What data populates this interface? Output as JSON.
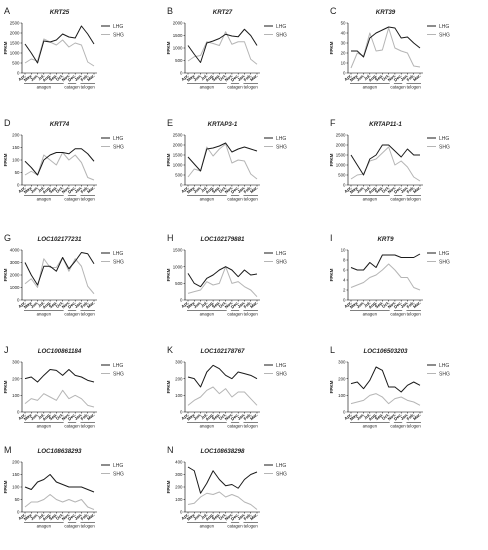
{
  "months": [
    "Apr.",
    "May.",
    "Jun.",
    "Jul.",
    "Aug.",
    "Sep.",
    "Oct.",
    "Nov.",
    "Dec.",
    "Jan.",
    "Feb.",
    "Mar."
  ],
  "phases": [
    "anagen",
    "catagen",
    "telogen"
  ],
  "colors": {
    "LHG": "#1a1a1a",
    "SHG": "#b5b5b5"
  },
  "chart_data": [
    {
      "letter": "A",
      "type": "line",
      "title": "KRT25",
      "ylabel": "FPKM",
      "ylim": [
        0,
        2500
      ],
      "yticks": [
        0,
        500,
        1000,
        1500,
        2000,
        2500
      ],
      "categories": [
        "Apr.",
        "May.",
        "Jun.",
        "Jul.",
        "Aug.",
        "Sep.",
        "Oct.",
        "Nov.",
        "Dec.",
        "Jan.",
        "Feb.",
        "Mar."
      ],
      "series": [
        {
          "name": "LHG",
          "values": [
            1450,
            1000,
            500,
            1600,
            1550,
            1650,
            1950,
            1800,
            1750,
            2350,
            1950,
            1450
          ]
        },
        {
          "name": "SHG",
          "values": [
            500,
            700,
            600,
            1700,
            1550,
            1400,
            1650,
            1300,
            1500,
            1400,
            550,
            350
          ]
        }
      ]
    },
    {
      "letter": "B",
      "type": "line",
      "title": "KRT27",
      "ylabel": "FPKM",
      "ylim": [
        0,
        2000
      ],
      "yticks": [
        0,
        500,
        1000,
        1500,
        2000
      ],
      "categories": [
        "Apr.",
        "May.",
        "Jun.",
        "Jul.",
        "Aug.",
        "Sep.",
        "Oct.",
        "Nov.",
        "Dec.",
        "Jan.",
        "Feb.",
        "Mar."
      ],
      "series": [
        {
          "name": "LHG",
          "values": [
            1100,
            750,
            420,
            1200,
            1280,
            1380,
            1550,
            1480,
            1450,
            1750,
            1500,
            1100
          ]
        },
        {
          "name": "SHG",
          "values": [
            480,
            650,
            700,
            1250,
            1180,
            1100,
            1650,
            1150,
            1250,
            1250,
            550,
            350
          ]
        }
      ]
    },
    {
      "letter": "C",
      "type": "line",
      "title": "KRT39",
      "ylabel": "FPKM",
      "ylim": [
        0,
        50
      ],
      "yticks": [
        0,
        10,
        20,
        30,
        40,
        50
      ],
      "categories": [
        "Apr.",
        "May.",
        "Jun.",
        "Jul.",
        "Aug.",
        "Sep.",
        "Oct.",
        "Nov.",
        "Dec.",
        "Jan.",
        "Feb.",
        "Mar."
      ],
      "series": [
        {
          "name": "LHG",
          "values": [
            22,
            22,
            16,
            35,
            40,
            43,
            46,
            45,
            35,
            36,
            30,
            25
          ]
        },
        {
          "name": "SHG",
          "values": [
            5,
            20,
            17,
            40,
            22,
            23,
            45,
            25,
            22,
            20,
            7,
            6
          ]
        }
      ]
    },
    {
      "letter": "D",
      "type": "line",
      "title": "KRT74",
      "ylabel": "FPKM",
      "ylim": [
        0,
        200
      ],
      "yticks": [
        0,
        50,
        100,
        150,
        200
      ],
      "categories": [
        "Apr.",
        "May.",
        "Jun.",
        "Jul.",
        "Aug.",
        "Sep.",
        "Oct.",
        "Nov.",
        "Dec.",
        "Jan.",
        "Feb.",
        "Mar."
      ],
      "series": [
        {
          "name": "LHG",
          "values": [
            95,
            70,
            40,
            100,
            120,
            130,
            130,
            125,
            145,
            145,
            125,
            95
          ]
        },
        {
          "name": "SHG",
          "values": [
            40,
            55,
            40,
            120,
            100,
            80,
            130,
            100,
            120,
            90,
            30,
            20
          ]
        }
      ]
    },
    {
      "letter": "E",
      "type": "line",
      "title": "KRTAP3-1",
      "ylabel": "FPKM",
      "ylim": [
        0,
        2500
      ],
      "yticks": [
        0,
        500,
        1000,
        1500,
        2000,
        2500
      ],
      "categories": [
        "Apr.",
        "May.",
        "Jun.",
        "Jul.",
        "Aug.",
        "Sep.",
        "Oct.",
        "Nov.",
        "Dec.",
        "Jan.",
        "Feb.",
        "Mar."
      ],
      "series": [
        {
          "name": "LHG",
          "values": [
            1400,
            1050,
            700,
            1800,
            1850,
            1950,
            2100,
            1650,
            1800,
            1900,
            1800,
            1700
          ]
        },
        {
          "name": "SHG",
          "values": [
            400,
            800,
            700,
            1900,
            1450,
            1800,
            2050,
            1100,
            1250,
            1200,
            550,
            300
          ]
        }
      ]
    },
    {
      "letter": "F",
      "type": "line",
      "title": "KRTAP11-1",
      "ylabel": "FPKM",
      "ylim": [
        0,
        2500
      ],
      "yticks": [
        0,
        500,
        1000,
        1500,
        2000,
        2500
      ],
      "categories": [
        "Apr.",
        "May.",
        "Jun.",
        "Jul.",
        "Aug.",
        "Sep.",
        "Oct.",
        "Nov.",
        "Dec.",
        "Jan.",
        "Feb.",
        "Mar."
      ],
      "series": [
        {
          "name": "LHG",
          "values": [
            1500,
            1000,
            500,
            1300,
            1500,
            2000,
            2000,
            1700,
            1400,
            1800,
            1500,
            1500
          ]
        },
        {
          "name": "SHG",
          "values": [
            300,
            500,
            550,
            1200,
            1300,
            1600,
            1900,
            1000,
            1200,
            900,
            400,
            200
          ]
        }
      ]
    },
    {
      "letter": "G",
      "type": "line",
      "title": "LOC102177231",
      "ylabel": "FPKM",
      "ylim": [
        0,
        4000
      ],
      "yticks": [
        0,
        1000,
        2000,
        3000,
        4000
      ],
      "categories": [
        "Apr.",
        "May.",
        "Jun.",
        "Jul.",
        "Aug.",
        "Sep.",
        "Oct.",
        "Nov.",
        "Dec.",
        "Jan.",
        "Feb.",
        "Mar."
      ],
      "series": [
        {
          "name": "LHG",
          "values": [
            3000,
            2000,
            1200,
            2700,
            2700,
            2300,
            3400,
            2500,
            3100,
            3800,
            3700,
            2900
          ]
        },
        {
          "name": "SHG",
          "values": [
            1300,
            1700,
            1000,
            3300,
            2600,
            2600,
            3400,
            2300,
            3300,
            2700,
            1100,
            500
          ]
        }
      ]
    },
    {
      "letter": "H",
      "type": "line",
      "title": "LOC102179881",
      "ylabel": "FPKM",
      "ylim": [
        0,
        1500
      ],
      "yticks": [
        0,
        500,
        1000,
        1500
      ],
      "categories": [
        "Apr.",
        "May.",
        "Jun.",
        "Jul.",
        "Aug.",
        "Sep.",
        "Oct.",
        "Nov.",
        "Dec.",
        "Jan.",
        "Feb.",
        "Mar."
      ],
      "series": [
        {
          "name": "LHG",
          "values": [
            800,
            500,
            400,
            650,
            750,
            900,
            1000,
            900,
            700,
            900,
            750,
            780
          ]
        },
        {
          "name": "SHG",
          "values": [
            200,
            250,
            300,
            550,
            450,
            500,
            1000,
            500,
            550,
            400,
            300,
            100
          ]
        }
      ]
    },
    {
      "letter": "I",
      "type": "line",
      "title": "KRT9",
      "ylabel": "FPKM",
      "ylim": [
        0,
        10
      ],
      "yticks": [
        0,
        2,
        4,
        6,
        8,
        10
      ],
      "categories": [
        "Apr.",
        "May.",
        "Jun.",
        "Jul.",
        "Aug.",
        "Sep.",
        "Oct.",
        "Nov.",
        "Dec.",
        "Jan.",
        "Feb.",
        "Mar."
      ],
      "series": [
        {
          "name": "LHG",
          "values": [
            6.5,
            6.0,
            6.0,
            7.5,
            6.5,
            9.0,
            9.0,
            9.0,
            8.5,
            8.5,
            8.5,
            9.2
          ]
        },
        {
          "name": "SHG",
          "values": [
            2.5,
            3.0,
            3.5,
            4.5,
            5.0,
            6.0,
            7.2,
            6.0,
            4.5,
            4.5,
            2.5,
            2.0
          ]
        }
      ]
    },
    {
      "letter": "J",
      "type": "line",
      "title": "LOC100861184",
      "ylabel": "FPKM",
      "ylim": [
        0,
        300
      ],
      "yticks": [
        0,
        100,
        200,
        300
      ],
      "categories": [
        "Apr.",
        "May.",
        "Jun.",
        "Jul.",
        "Aug.",
        "Sep.",
        "Oct.",
        "Nov.",
        "Dec.",
        "Jan.",
        "Feb.",
        "Mar."
      ],
      "series": [
        {
          "name": "LHG",
          "values": [
            200,
            210,
            180,
            220,
            255,
            250,
            220,
            255,
            220,
            210,
            190,
            180
          ]
        },
        {
          "name": "SHG",
          "values": [
            50,
            80,
            70,
            110,
            90,
            70,
            130,
            80,
            100,
            80,
            40,
            30
          ]
        }
      ]
    },
    {
      "letter": "K",
      "type": "line",
      "title": "LOC102178767",
      "ylabel": "FPKM",
      "ylim": [
        0,
        300
      ],
      "yticks": [
        0,
        100,
        200,
        300
      ],
      "categories": [
        "Apr.",
        "May.",
        "Jun.",
        "Jul.",
        "Aug.",
        "Sep.",
        "Oct.",
        "Nov.",
        "Dec.",
        "Jan.",
        "Feb.",
        "Mar."
      ],
      "series": [
        {
          "name": "LHG",
          "values": [
            210,
            200,
            150,
            240,
            280,
            260,
            220,
            200,
            240,
            230,
            220,
            200
          ]
        },
        {
          "name": "SHG",
          "values": [
            40,
            70,
            90,
            130,
            150,
            110,
            140,
            90,
            120,
            120,
            80,
            40
          ]
        }
      ]
    },
    {
      "letter": "L",
      "type": "line",
      "title": "LOC106503203",
      "ylabel": "FPKM",
      "ylim": [
        0,
        300
      ],
      "yticks": [
        0,
        100,
        200,
        300
      ],
      "categories": [
        "Apr.",
        "May.",
        "Jun.",
        "Jul.",
        "Aug.",
        "Sep.",
        "Oct.",
        "Nov.",
        "Dec.",
        "Jan.",
        "Feb.",
        "Mar."
      ],
      "series": [
        {
          "name": "LHG",
          "values": [
            170,
            180,
            140,
            190,
            270,
            250,
            150,
            150,
            120,
            160,
            180,
            160
          ]
        },
        {
          "name": "SHG",
          "values": [
            50,
            60,
            70,
            100,
            110,
            90,
            50,
            80,
            90,
            70,
            60,
            40
          ]
        }
      ]
    },
    {
      "letter": "M",
      "type": "line",
      "title": "LOC108638293",
      "ylabel": "FPKM",
      "ylim": [
        0,
        200
      ],
      "yticks": [
        0,
        50,
        100,
        150,
        200
      ],
      "categories": [
        "Apr.",
        "May.",
        "Jun.",
        "Jul.",
        "Aug.",
        "Sep.",
        "Oct.",
        "Nov.",
        "Dec.",
        "Jan.",
        "Feb.",
        "Mar."
      ],
      "series": [
        {
          "name": "LHG",
          "values": [
            100,
            90,
            120,
            130,
            150,
            120,
            110,
            100,
            100,
            100,
            90,
            80
          ]
        },
        {
          "name": "SHG",
          "values": [
            20,
            40,
            40,
            50,
            70,
            50,
            40,
            50,
            40,
            50,
            20,
            10
          ]
        }
      ]
    },
    {
      "letter": "N",
      "type": "line",
      "title": "LOC108638298",
      "ylabel": "FPKM",
      "ylim": [
        0,
        400
      ],
      "yticks": [
        0,
        100,
        200,
        300,
        400
      ],
      "categories": [
        "Apr.",
        "May.",
        "Jun.",
        "Jul.",
        "Aug.",
        "Sep.",
        "Oct.",
        "Nov.",
        "Dec.",
        "Jan.",
        "Feb.",
        "Mar."
      ],
      "series": [
        {
          "name": "LHG",
          "values": [
            360,
            330,
            150,
            230,
            330,
            260,
            210,
            220,
            190,
            260,
            300,
            320
          ]
        },
        {
          "name": "SHG",
          "values": [
            60,
            70,
            120,
            150,
            140,
            160,
            120,
            140,
            120,
            80,
            60,
            20
          ]
        }
      ]
    }
  ]
}
